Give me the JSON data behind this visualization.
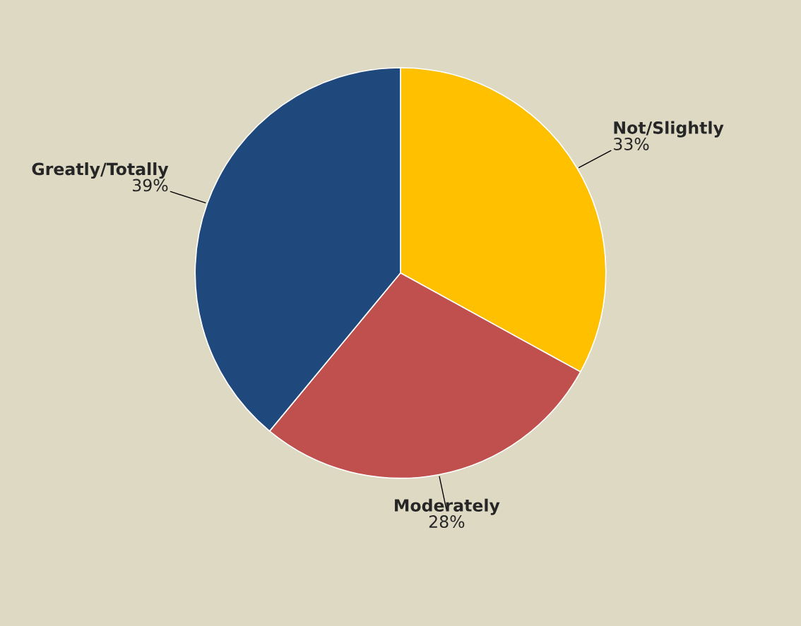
{
  "chart_data": {
    "type": "pie",
    "categories": [
      "Not/Slightly",
      "Moderately",
      "Greatly/Totally"
    ],
    "values": [
      33,
      28,
      39
    ],
    "colors": [
      "#ffc000",
      "#c0504d",
      "#1f497d"
    ],
    "value_labels": [
      "33%",
      "28%",
      "39%"
    ]
  }
}
